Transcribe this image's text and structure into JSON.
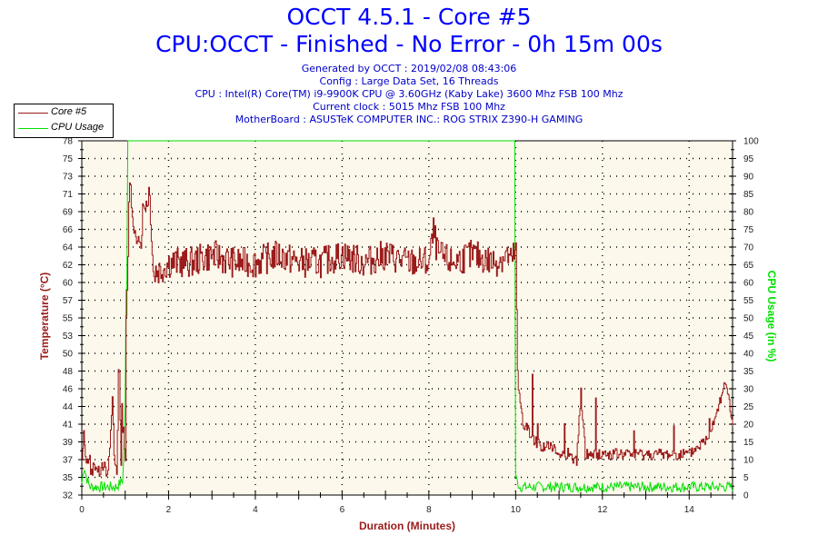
{
  "header": {
    "title": "OCCT 4.5.1 - Core #5",
    "subtitle": "CPU:OCCT - Finished - No Error - 0h 15m 00s",
    "info_lines": [
      "Generated by OCCT : 2019/02/08 08:43:06",
      "Config : Large Data Set, 16 Threads",
      "CPU : Intel(R) Core(TM) i9-9900K CPU @ 3.60GHz (Kaby Lake) 3600 Mhz FSB 100 Mhz",
      "Current clock : 5015 Mhz FSB 100 Mhz",
      "MotherBoard : ASUSTeK COMPUTER INC.: ROG STRIX Z390-H GAMING"
    ]
  },
  "legend": {
    "items": [
      {
        "label": "Core #5",
        "color": "#9b1b1b"
      },
      {
        "label": "CPU Usage",
        "color": "#00e000"
      }
    ]
  },
  "colors": {
    "temperature": "#9b1b1b",
    "cpu_usage": "#00e000",
    "plot_bg": "#fdf8ec",
    "title": "#0000ff",
    "info": "#0000c8",
    "xlabel": "#9b1b1b",
    "ylabel_left": "#9b1b1b",
    "ylabel_right": "#00e000"
  },
  "chart_data": {
    "type": "line",
    "title": "OCCT 4.5.1 - Core #5",
    "subtitle": "CPU:OCCT - Finished - No Error - 0h 15m 00s",
    "xlabel": "Duration (Minutes)",
    "ylabel": "Temperature (°C)",
    "ylabel_right": "CPU Usage (in %)",
    "xlim": [
      0,
      15
    ],
    "ylim": [
      32,
      78
    ],
    "ylim_right": [
      0,
      100
    ],
    "x_ticks": [
      "0",
      "2",
      "4",
      "6",
      "8",
      "10",
      "12",
      "14"
    ],
    "y_ticks_left": [
      "32",
      "35",
      "37",
      "39",
      "41",
      "44",
      "46",
      "48",
      "50",
      "53",
      "55",
      "57",
      "60",
      "62",
      "64",
      "66",
      "69",
      "71",
      "73",
      "75",
      "78"
    ],
    "y_ticks_right": [
      "0",
      "5",
      "10",
      "15",
      "20",
      "25",
      "30",
      "35",
      "40",
      "45",
      "50",
      "55",
      "60",
      "65",
      "70",
      "75",
      "80",
      "85",
      "90",
      "95",
      "100"
    ],
    "grid": true,
    "legend_position": "top-left",
    "series": [
      {
        "name": "Core #5",
        "axis": "left",
        "x": [
          0,
          0.05,
          0.1,
          0.15,
          0.2,
          0.3,
          0.4,
          0.5,
          0.55,
          0.6,
          0.7,
          0.75,
          0.8,
          0.85,
          0.9,
          0.95,
          1.0,
          1.02,
          1.05,
          1.1,
          1.15,
          1.2,
          1.25,
          1.3,
          1.35,
          1.4,
          1.45,
          1.5,
          1.55,
          1.6,
          1.65,
          1.7,
          1.8,
          2.0,
          2.5,
          3.0,
          3.5,
          4.0,
          4.5,
          5.0,
          5.5,
          6.0,
          6.5,
          7.0,
          7.5,
          8.0,
          8.1,
          8.2,
          8.5,
          9.0,
          9.5,
          9.8,
          9.9,
          9.95,
          10.0,
          10.02,
          10.05,
          10.1,
          10.2,
          10.4,
          10.6,
          10.8,
          11.0,
          11.2,
          11.4,
          11.5,
          11.6,
          11.8,
          12.0,
          12.2,
          12.4,
          12.6,
          12.8,
          13.0,
          13.2,
          13.4,
          13.6,
          13.8,
          14.0,
          14.2,
          14.4,
          14.6,
          14.7,
          14.8,
          14.9,
          15.0
        ],
        "values": [
          36,
          40,
          35,
          37,
          35,
          35,
          35,
          36,
          35,
          34,
          44,
          35,
          35,
          50,
          35,
          42,
          35,
          55,
          61,
          74,
          68,
          65,
          65,
          67,
          64,
          69,
          70,
          70,
          72,
          66,
          60,
          61,
          61,
          62,
          62,
          63,
          62,
          62,
          63,
          62,
          62,
          63,
          62,
          63,
          62,
          62,
          66,
          63,
          62,
          63,
          62,
          63,
          62,
          63,
          64,
          55,
          45,
          44,
          41,
          39,
          38,
          38,
          37,
          37,
          36,
          45,
          37,
          37,
          37,
          37,
          37,
          37,
          37,
          37,
          37,
          37,
          37,
          37,
          37,
          38,
          39,
          42,
          44,
          46,
          45,
          40
        ]
      },
      {
        "name": "CPU Usage",
        "axis": "right",
        "x": [
          0,
          0.05,
          0.1,
          0.15,
          0.2,
          0.4,
          0.6,
          0.8,
          0.95,
          1.0,
          1.01,
          1.02,
          1.04,
          1.05,
          1.06,
          9.99,
          10.0,
          10.05,
          10.1,
          10.3,
          11,
          12,
          13,
          14,
          15
        ],
        "values": [
          3,
          8,
          5,
          3,
          2,
          2,
          2,
          2,
          4,
          25,
          40,
          58,
          58,
          100,
          100,
          100,
          5,
          3,
          2,
          2,
          2,
          2,
          2,
          2,
          2
        ]
      }
    ]
  }
}
